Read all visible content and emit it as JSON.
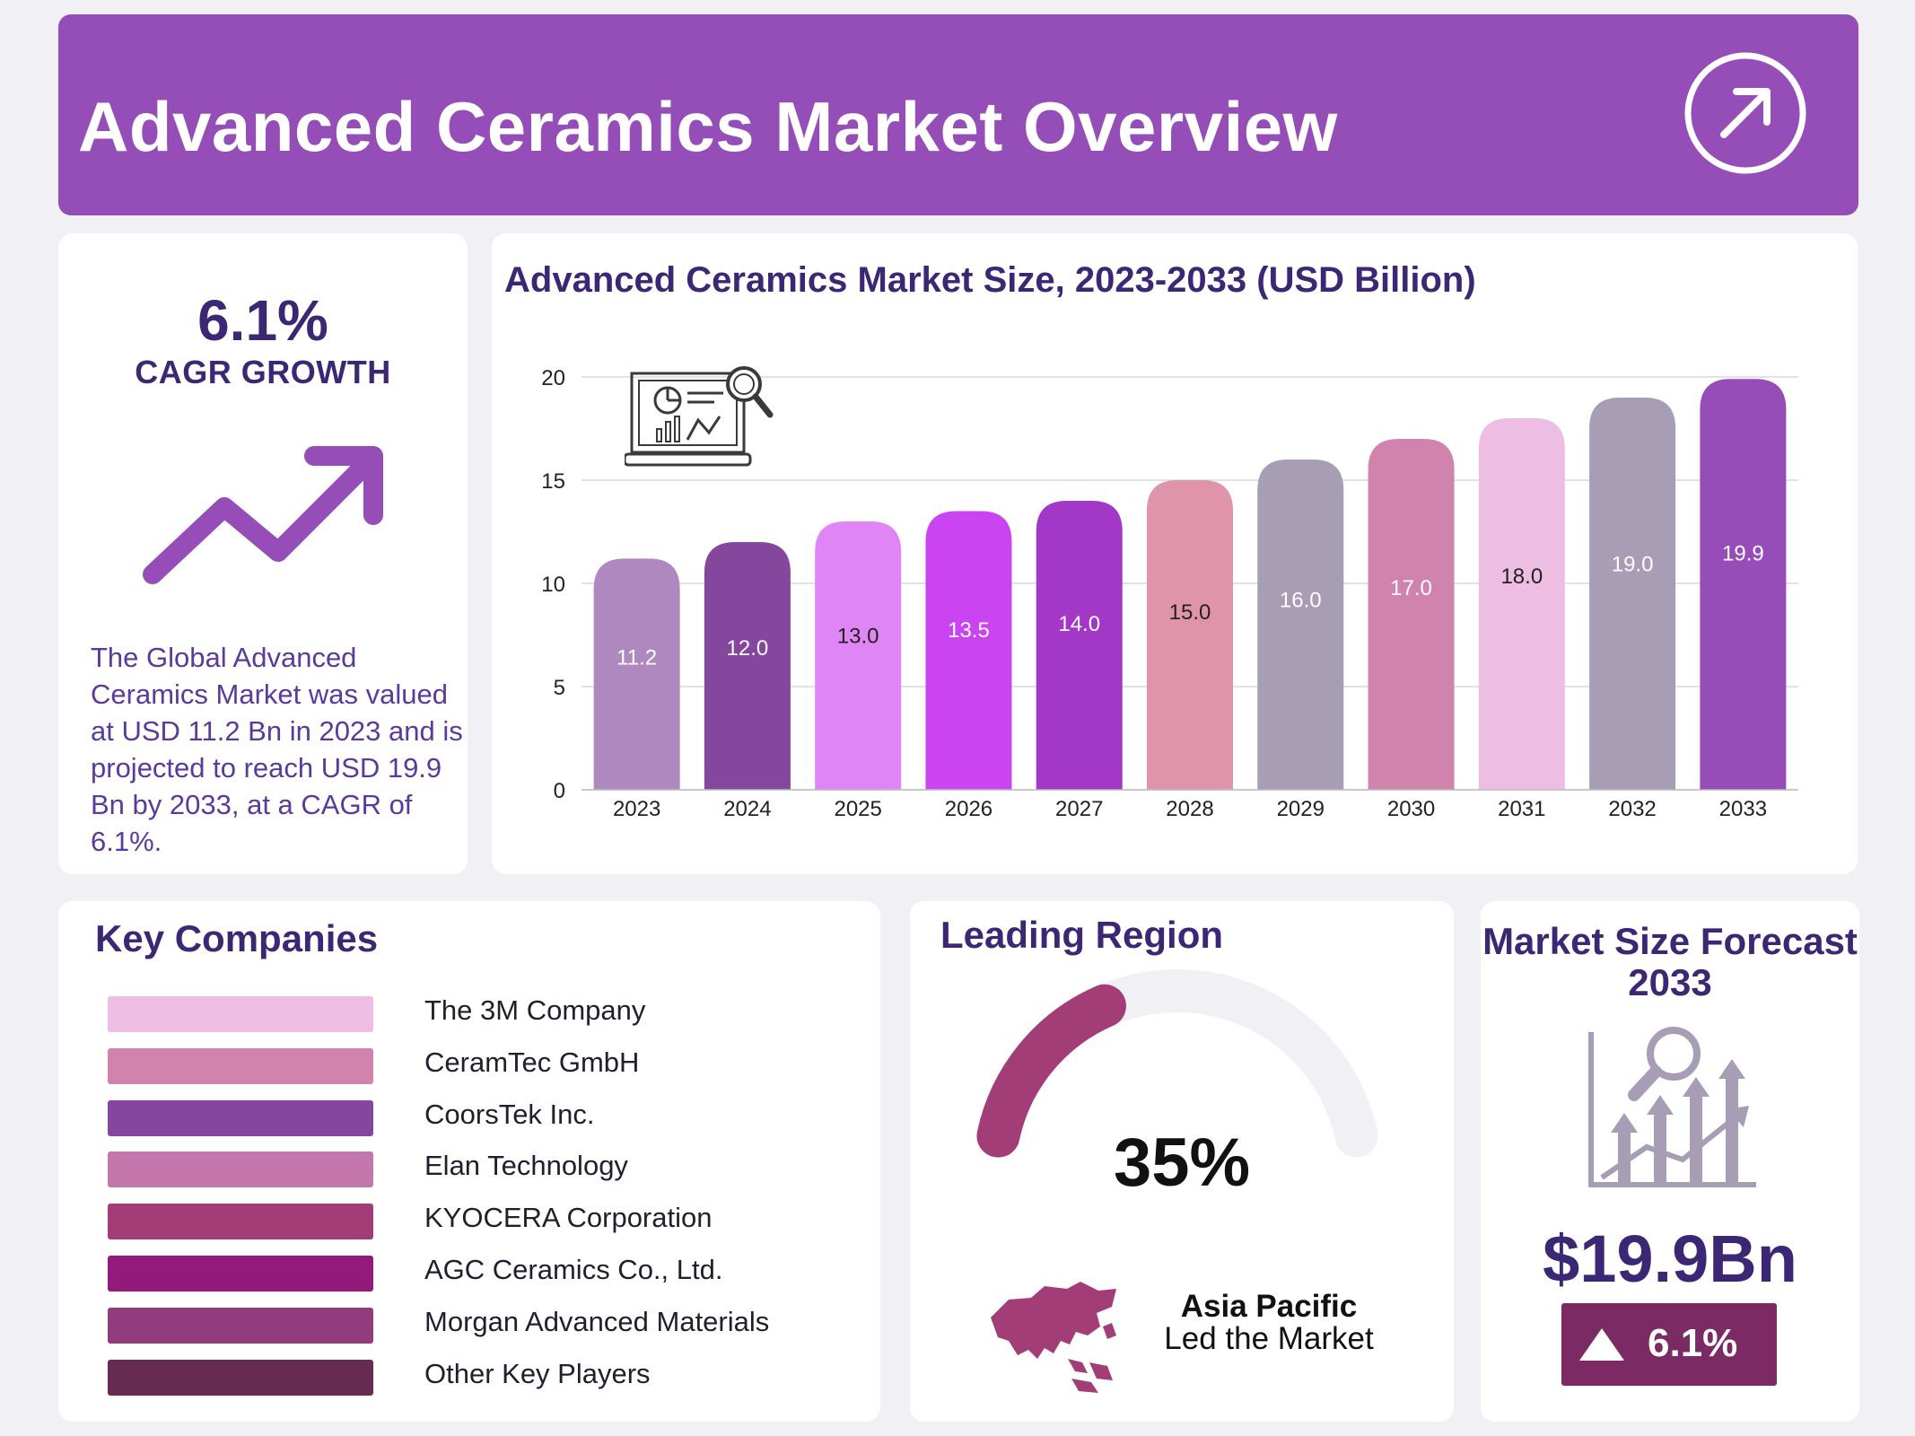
{
  "header": {
    "title": "Advanced Ceramics Market Overview",
    "icon": "arrow-up-right-icon"
  },
  "cagr": {
    "value": "6.1%",
    "label": "CAGR GROWTH",
    "description": "The Global Advanced Ceramics Market was valued at USD 11.2 Bn in 2023 and is projected to reach USD 19.9 Bn by 2033, at a CAGR of 6.1%."
  },
  "chart_data": {
    "type": "bar",
    "title": "Advanced Ceramics Market Size, 2023-2033 (USD Billion)",
    "categories": [
      "2023",
      "2024",
      "2025",
      "2026",
      "2027",
      "2028",
      "2029",
      "2030",
      "2031",
      "2032",
      "2033"
    ],
    "values": [
      11.2,
      12.0,
      13.0,
      13.5,
      14.0,
      15.0,
      16.0,
      17.0,
      18.0,
      19.0,
      19.9
    ],
    "data_labels": [
      "11.2",
      "12.0",
      "13.0",
      "13.5",
      "14.0",
      "15.0",
      "16.0",
      "17.0",
      "18.0",
      "19.0",
      "19.9"
    ],
    "colors": [
      "#b088c0",
      "#84479d",
      "#df85f5",
      "#cb44f1",
      "#a337c8",
      "#df94ac",
      "#a79eb6",
      "#cf83ad",
      "#edbde3",
      "#a79eb6",
      "#974db8"
    ],
    "label_colors": [
      "#ffffff",
      "#ffffff",
      "#222222",
      "#ffffff",
      "#ffffff",
      "#222222",
      "#ffffff",
      "#ffffff",
      "#222222",
      "#ffffff",
      "#ffffff"
    ],
    "yticks": [
      "0",
      "5",
      "10",
      "15",
      "20"
    ],
    "ylim": [
      0,
      20
    ],
    "xlabel": "",
    "ylabel": "",
    "grid": true,
    "icon": "laptop-analytics-icon"
  },
  "companies": {
    "title": "Key Companies",
    "items": [
      {
        "name": "The 3M Company",
        "color": "#edbde3"
      },
      {
        "name": "CeramTec GmbH",
        "color": "#cf83ad"
      },
      {
        "name": "CoorsTek Inc.",
        "color": "#84479d"
      },
      {
        "name": "Elan Technology",
        "color": "#c477ad"
      },
      {
        "name": "KYOCERA Corporation",
        "color": "#a33d78"
      },
      {
        "name": "AGC Ceramics Co., Ltd.",
        "color": "#931a7b"
      },
      {
        "name": "Morgan Advanced Materials",
        "color": "#913c7c"
      },
      {
        "name": "Other Key Players",
        "color": "#672b52"
      }
    ]
  },
  "region": {
    "title": "Leading Region",
    "percent": "35%",
    "share": 0.35,
    "name": "Asia Pacific",
    "subtitle": "Led the Market",
    "gauge_color": "#a33d78",
    "track_color": "#f1f0f5",
    "map_icon": "asia-map-icon"
  },
  "forecast": {
    "title": "Market Size Forecast 2033",
    "value": "$19.9Bn",
    "growth": "6.1%",
    "icon": "growth-chart-icon",
    "badge_icon": "triangle-up-icon"
  }
}
